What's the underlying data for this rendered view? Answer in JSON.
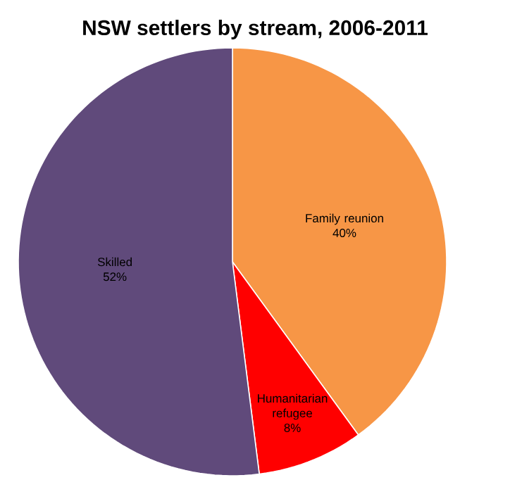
{
  "chart_data": {
    "type": "pie",
    "title": "NSW settlers by stream, 2006-2011",
    "categories": [
      "Family reunion",
      "Humanitarian refugee",
      "Skilled"
    ],
    "values": [
      40,
      8,
      52
    ],
    "value_labels": [
      "40%",
      "8%",
      "52%"
    ],
    "colors": [
      "#f79646",
      "#ff0000",
      "#604a7b"
    ]
  }
}
